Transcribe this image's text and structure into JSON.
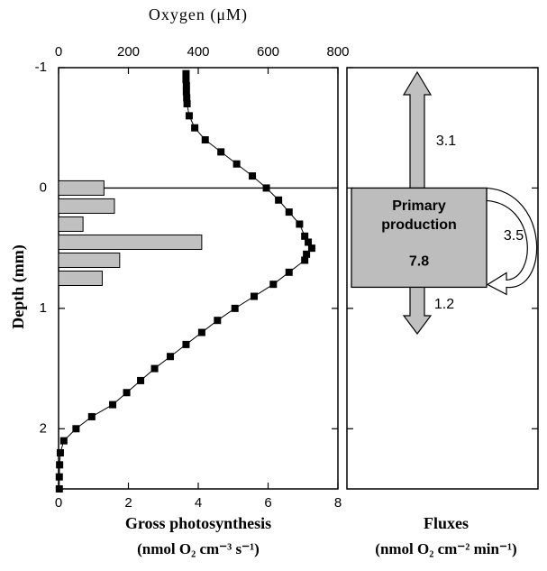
{
  "chart_data": [
    {
      "type": "profile",
      "x2label": "Oxygen (μM)",
      "x2lim": [
        0,
        800
      ],
      "x2ticks": [
        0,
        200,
        400,
        600,
        800
      ],
      "xlabel": "Gross photosynthesis",
      "xlabel_units": "(nmol O₂ cm⁻³ s⁻¹)",
      "xlim": [
        0,
        8
      ],
      "xticks": [
        0,
        2,
        4,
        6,
        8
      ],
      "ylabel": "Depth (mm)",
      "ylim": [
        -1,
        2.5
      ],
      "yticks": [
        -1,
        0,
        1,
        2
      ],
      "inverted_y": true,
      "oxygen": {
        "color": "#000000",
        "depth": [
          -0.95,
          -0.9,
          -0.85,
          -0.8,
          -0.75,
          -0.7,
          -0.6,
          -0.5,
          -0.4,
          -0.3,
          -0.2,
          -0.1,
          0,
          0.1,
          0.2,
          0.3,
          0.4,
          0.45,
          0.5,
          0.55,
          0.6,
          0.7,
          0.8,
          0.9,
          1.0,
          1.1,
          1.2,
          1.3,
          1.4,
          1.5,
          1.6,
          1.7,
          1.8,
          1.9,
          2.0,
          2.1,
          2.2,
          2.3,
          2.4,
          2.5
        ],
        "values": [
          365,
          365,
          366,
          366,
          367,
          368,
          374,
          390,
          420,
          465,
          510,
          555,
          595,
          630,
          660,
          690,
          705,
          715,
          725,
          710,
          705,
          660,
          615,
          560,
          505,
          455,
          410,
          365,
          320,
          275,
          235,
          195,
          155,
          95,
          50,
          15,
          5,
          3,
          2,
          2
        ]
      },
      "photosynthesis": {
        "color": "#c0c0c0",
        "thickness": 0.12,
        "depth": [
          0,
          0.15,
          0.3,
          0.45,
          0.6,
          0.75
        ],
        "values": [
          1.3,
          1.6,
          0.7,
          4.1,
          1.75,
          1.25
        ]
      }
    },
    {
      "type": "flux",
      "xlabel": "Fluxes",
      "xlabel_units": "(nmol O₂ cm⁻² min⁻¹)",
      "ylim": [
        -1,
        2.5
      ],
      "yticks": [
        -1,
        0,
        1,
        2
      ],
      "production_label": "Primary production",
      "production": 7.8,
      "efflux_up": 3.1,
      "recycled": 3.5,
      "efflux_down": 1.2
    }
  ]
}
